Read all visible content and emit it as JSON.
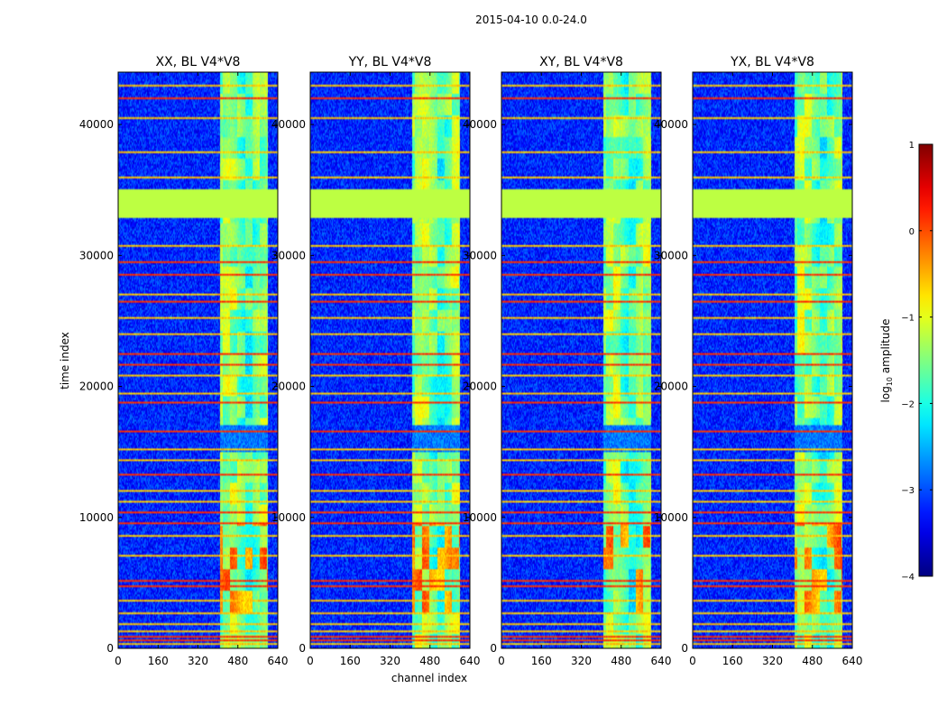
{
  "chart_data": {
    "type": "heatmap",
    "suptitle": "2015-04-10 0.0-24.0",
    "xlabel": "channel index",
    "ylabel": "time index",
    "xlim": [
      0,
      640
    ],
    "ylim": [
      0,
      44000
    ],
    "xticks": [
      0,
      160,
      320,
      480,
      640
    ],
    "yticks": [
      0,
      10000,
      20000,
      30000,
      40000
    ],
    "panels": [
      {
        "title": "XX, BL V4*V8",
        "polarization": "XX"
      },
      {
        "title": "YY, BL V4*V8",
        "polarization": "YY"
      },
      {
        "title": "XY, BL V4*V8",
        "polarization": "XY"
      },
      {
        "title": "YX, BL V4*V8",
        "polarization": "YX"
      }
    ],
    "colormap": "jet",
    "colorbar": {
      "label_prefix": "log",
      "label_sub": "10",
      "label_suffix": " amplitude",
      "vmin": -4,
      "vmax": 1,
      "ticks": [
        1,
        0,
        -1,
        -2,
        -3,
        -4
      ],
      "tick_labels": [
        "1",
        "0",
        "−1",
        "−2",
        "−3",
        "−4"
      ]
    },
    "features": {
      "background_level": -3.2,
      "bright_channel_band": [
        410,
        600
      ],
      "bright_band_level": -1.6,
      "masked_block": {
        "t_range": [
          33000,
          35000
        ],
        "level": -1.2
      },
      "strong_rfi_rows": [
        42000,
        33000,
        29500,
        28500,
        26500,
        22500,
        21600,
        18800,
        16600,
        13200,
        10300,
        9500,
        5100,
        4700,
        800,
        500
      ],
      "weak_rfi_rows": [
        43000,
        40500,
        38000,
        36000,
        30800,
        27000,
        25200,
        24000,
        20800,
        19500,
        15200,
        14400,
        12000,
        11200,
        8500,
        7000,
        3600,
        2600,
        1800,
        1200,
        300
      ]
    }
  }
}
